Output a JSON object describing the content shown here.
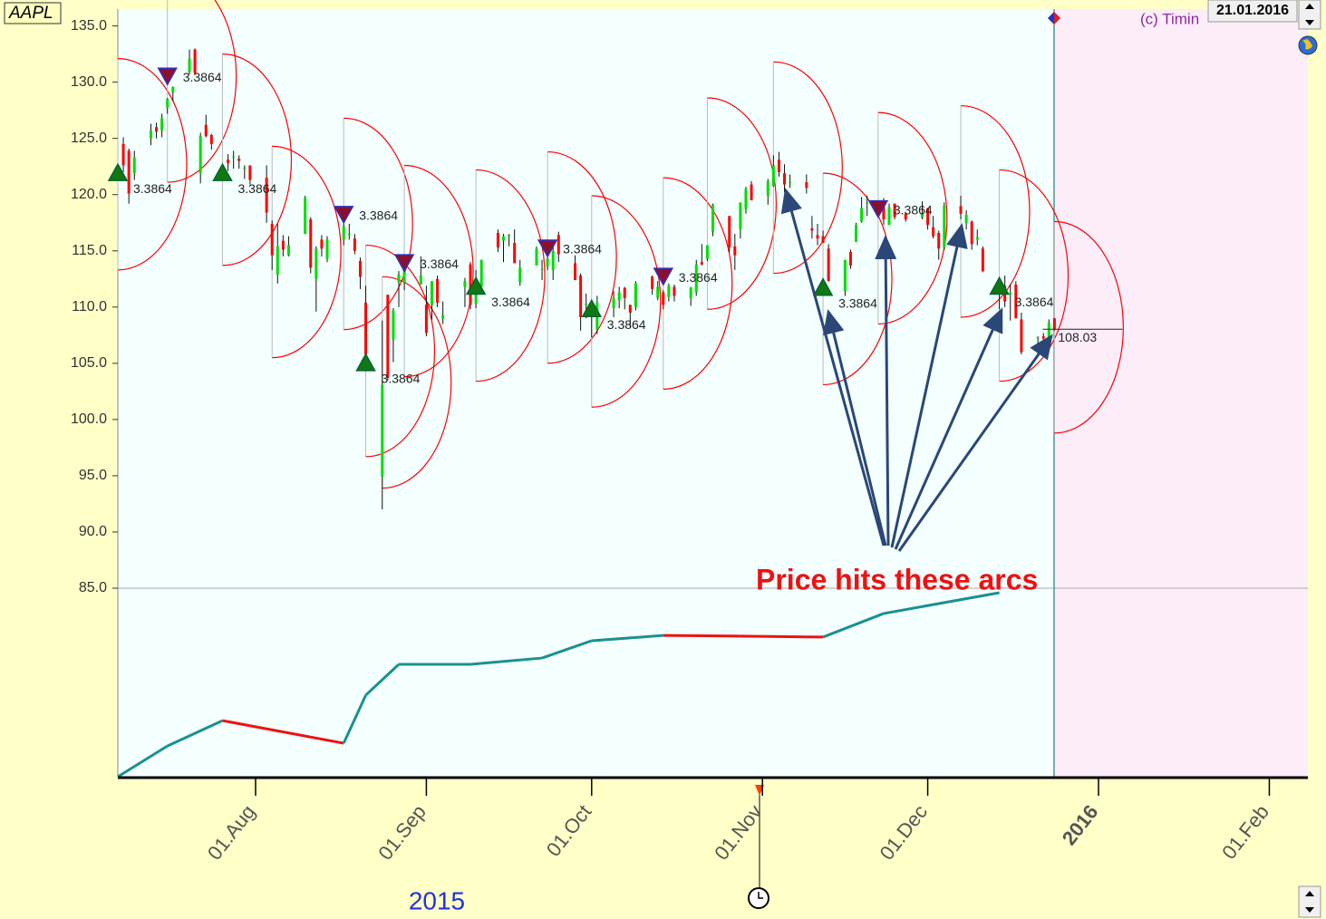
{
  "chart_data": {
    "type": "candlestick",
    "symbol": "AAPL",
    "copyright": "(c) Timin",
    "date_box": "21.01.2016",
    "year_label": "2015",
    "annotation": "Price hits these arcs",
    "xlim": [
      "2015-07-07",
      "2016-02-08"
    ],
    "xticks": [
      {
        "value": "2015-08-01",
        "label": "01.Aug"
      },
      {
        "value": "2015-09-01",
        "label": "01.Sep"
      },
      {
        "value": "2015-10-01",
        "label": "01.Oct"
      },
      {
        "value": "2015-11-01",
        "label": "01.Nov"
      },
      {
        "value": "2015-12-01",
        "label": "01.Dec"
      },
      {
        "value": "2016-01-01",
        "label": "2016"
      },
      {
        "value": "2016-02-01",
        "label": "01.Feb"
      }
    ],
    "ylim": [
      85,
      136.5
    ],
    "yticks": [
      {
        "value": 135,
        "label": "135.0"
      },
      {
        "value": 130,
        "label": "130.0"
      },
      {
        "value": 125,
        "label": "125.0"
      },
      {
        "value": 120,
        "label": "120.0"
      },
      {
        "value": 115,
        "label": "115.0"
      },
      {
        "value": 110,
        "label": "110.0"
      },
      {
        "value": 105,
        "label": "105.0"
      },
      {
        "value": 100,
        "label": "100.0"
      },
      {
        "value": 95,
        "label": "95.0"
      },
      {
        "value": 90,
        "label": "90.0"
      },
      {
        "value": 85,
        "label": "85.0"
      }
    ],
    "candle_colors": {
      "up": "#00dd00",
      "down": "#ff0000"
    },
    "candles": [
      [
        "2015-07-08",
        124.5,
        125.1,
        122.0,
        122.6
      ],
      [
        "2015-07-09",
        123.9,
        124.1,
        119.2,
        120.1
      ],
      [
        "2015-07-10",
        121.9,
        123.9,
        121.3,
        123.3
      ],
      [
        "2015-07-13",
        125.0,
        126.3,
        124.4,
        125.7
      ],
      [
        "2015-07-14",
        126.0,
        126.4,
        125.0,
        125.6
      ],
      [
        "2015-07-15",
        125.7,
        127.2,
        125.1,
        126.8
      ],
      [
        "2015-07-16",
        127.7,
        128.6,
        127.2,
        128.5
      ],
      [
        "2015-07-17",
        129.1,
        129.6,
        128.3,
        129.6
      ],
      [
        "2015-07-20",
        130.9,
        132.9,
        130.7,
        132.1
      ],
      [
        "2015-07-21",
        132.9,
        133.0,
        130.7,
        130.8
      ],
      [
        "2015-07-22",
        121.9,
        125.5,
        121.0,
        125.2
      ],
      [
        "2015-07-23",
        126.2,
        127.1,
        125.1,
        125.2
      ],
      [
        "2015-07-24",
        125.3,
        125.4,
        124.0,
        124.5
      ],
      [
        "2015-07-27",
        123.1,
        123.6,
        122.1,
        122.8
      ],
      [
        "2015-07-28",
        123.4,
        123.9,
        122.3,
        123.4
      ],
      [
        "2015-07-29",
        123.2,
        123.5,
        122.3,
        123.0
      ],
      [
        "2015-07-30",
        122.3,
        122.6,
        121.4,
        122.4
      ],
      [
        "2015-07-31",
        122.6,
        122.6,
        120.9,
        121.3
      ],
      [
        "2015-08-03",
        121.5,
        122.6,
        117.5,
        118.4
      ],
      [
        "2015-08-04",
        117.4,
        117.7,
        113.3,
        114.6
      ],
      [
        "2015-08-05",
        112.9,
        117.4,
        112.1,
        115.4
      ],
      [
        "2015-08-06",
        115.9,
        116.4,
        114.5,
        115.1
      ],
      [
        "2015-08-07",
        114.6,
        116.3,
        114.5,
        115.5
      ],
      [
        "2015-08-10",
        116.5,
        119.9,
        116.5,
        119.7
      ],
      [
        "2015-08-11",
        117.8,
        118.0,
        113.0,
        113.5
      ],
      [
        "2015-08-12",
        112.5,
        115.4,
        109.6,
        115.2
      ],
      [
        "2015-08-13",
        116.0,
        116.4,
        114.5,
        115.2
      ],
      [
        "2015-08-14",
        114.3,
        116.3,
        114.0,
        116.0
      ],
      [
        "2015-08-17",
        116.0,
        117.6,
        115.5,
        117.2
      ],
      [
        "2015-08-18",
        116.4,
        117.4,
        116.0,
        116.5
      ],
      [
        "2015-08-19",
        116.1,
        116.5,
        114.7,
        115.0
      ],
      [
        "2015-08-20",
        114.1,
        114.4,
        111.6,
        112.7
      ],
      [
        "2015-08-21",
        110.4,
        111.9,
        105.6,
        105.8
      ],
      [
        "2015-08-24",
        94.9,
        108.8,
        92.0,
        103.1
      ],
      [
        "2015-08-25",
        111.1,
        111.1,
        103.5,
        103.7
      ],
      [
        "2015-08-26",
        107.1,
        109.9,
        105.1,
        109.7
      ],
      [
        "2015-08-27",
        112.2,
        113.2,
        110.0,
        112.9
      ],
      [
        "2015-08-28",
        112.2,
        113.3,
        111.5,
        113.3
      ],
      [
        "2015-08-31",
        112.0,
        114.5,
        112.0,
        112.8
      ],
      [
        "2015-09-01",
        110.2,
        111.9,
        107.4,
        107.7
      ],
      [
        "2015-09-02",
        110.2,
        112.3,
        108.9,
        112.3
      ],
      [
        "2015-09-03",
        112.5,
        112.8,
        110.0,
        110.4
      ],
      [
        "2015-09-04",
        108.97,
        110.5,
        108.5,
        109.3
      ],
      [
        "2015-09-08",
        111.8,
        112.6,
        110.0,
        112.3
      ],
      [
        "2015-09-09",
        113.8,
        114.0,
        109.8,
        110.2
      ],
      [
        "2015-09-10",
        110.3,
        113.3,
        109.9,
        112.6
      ],
      [
        "2015-09-11",
        111.8,
        114.2,
        111.8,
        114.2
      ],
      [
        "2015-09-14",
        116.6,
        116.9,
        114.9,
        115.3
      ],
      [
        "2015-09-15",
        115.9,
        116.5,
        114.0,
        116.3
      ],
      [
        "2015-09-16",
        116.3,
        116.5,
        115.4,
        116.4
      ],
      [
        "2015-09-17",
        115.7,
        116.9,
        113.9,
        113.9
      ],
      [
        "2015-09-18",
        112.2,
        114.2,
        111.9,
        113.5
      ],
      [
        "2015-09-21",
        113.7,
        115.4,
        113.7,
        115.2
      ],
      [
        "2015-09-22",
        113.4,
        114.2,
        112.4,
        113.4
      ],
      [
        "2015-09-23",
        113.6,
        114.7,
        113.3,
        114.3
      ],
      [
        "2015-09-24",
        113.3,
        115.5,
        112.4,
        115.0
      ],
      [
        "2015-09-25",
        116.4,
        116.7,
        114.0,
        114.7
      ],
      [
        "2015-09-28",
        113.9,
        114.6,
        112.4,
        112.4
      ],
      [
        "2015-09-29",
        112.8,
        113.0,
        107.9,
        109.1
      ],
      [
        "2015-09-30",
        110.2,
        111.2,
        109.0,
        110.3
      ],
      [
        "2015-10-01",
        109.1,
        109.6,
        107.3,
        109.6
      ],
      [
        "2015-10-02",
        108.0,
        111.0,
        107.6,
        110.4
      ],
      [
        "2015-10-05",
        109.9,
        111.4,
        109.1,
        110.8
      ],
      [
        "2015-10-06",
        110.6,
        111.8,
        109.9,
        111.3
      ],
      [
        "2015-10-07",
        111.7,
        111.8,
        109.8,
        110.8
      ],
      [
        "2015-10-08",
        110.2,
        110.2,
        108.2,
        109.5
      ],
      [
        "2015-10-09",
        110.0,
        112.3,
        109.7,
        112.1
      ],
      [
        "2015-10-12",
        112.7,
        112.8,
        111.1,
        111.6
      ],
      [
        "2015-10-13",
        110.8,
        112.3,
        110.6,
        111.8
      ],
      [
        "2015-10-14",
        111.3,
        111.5,
        109.8,
        110.2
      ],
      [
        "2015-10-15",
        110.9,
        112.1,
        110.5,
        111.9
      ],
      [
        "2015-10-16",
        111.8,
        112.0,
        110.5,
        111.0
      ],
      [
        "2015-10-19",
        110.8,
        111.8,
        110.1,
        111.7
      ],
      [
        "2015-10-20",
        111.3,
        114.2,
        111.0,
        113.8
      ],
      [
        "2015-10-21",
        114.0,
        115.6,
        113.7,
        113.8
      ],
      [
        "2015-10-22",
        114.3,
        115.5,
        114.1,
        115.5
      ],
      [
        "2015-10-23",
        116.7,
        119.2,
        116.3,
        119.1
      ],
      [
        "2015-10-26",
        118.1,
        118.1,
        114.9,
        115.3
      ],
      [
        "2015-10-27",
        115.4,
        116.5,
        113.3,
        114.6
      ],
      [
        "2015-10-28",
        116.9,
        119.3,
        116.1,
        119.3
      ],
      [
        "2015-10-29",
        118.7,
        120.7,
        118.3,
        120.5
      ],
      [
        "2015-10-30",
        120.9,
        121.2,
        119.5,
        119.5
      ],
      [
        "2015-11-02",
        119.9,
        121.4,
        119.1,
        121.2
      ],
      [
        "2015-11-03",
        120.8,
        123.5,
        120.7,
        122.6
      ],
      [
        "2015-11-04",
        123.1,
        123.8,
        121.6,
        122.0
      ],
      [
        "2015-11-05",
        121.9,
        122.7,
        120.2,
        120.9
      ],
      [
        "2015-11-06",
        121.1,
        121.8,
        120.6,
        121.1
      ],
      [
        "2015-11-09",
        121.1,
        121.8,
        120.1,
        120.6
      ],
      [
        "2015-11-10",
        117.0,
        118.1,
        116.1,
        116.8
      ],
      [
        "2015-11-11",
        116.4,
        117.4,
        115.5,
        116.1
      ],
      [
        "2015-11-12",
        116.3,
        116.8,
        115.7,
        115.7
      ],
      [
        "2015-11-13",
        115.2,
        115.6,
        112.3,
        112.3
      ],
      [
        "2015-11-16",
        111.4,
        114.2,
        111.0,
        114.2
      ],
      [
        "2015-11-17",
        114.9,
        115.1,
        113.4,
        113.7
      ],
      [
        "2015-11-18",
        115.8,
        117.5,
        115.8,
        117.3
      ],
      [
        "2015-11-19",
        117.6,
        119.8,
        117.5,
        118.8
      ],
      [
        "2015-11-20",
        119.2,
        119.9,
        118.1,
        119.3
      ],
      [
        "2015-11-23",
        119.3,
        119.7,
        117.3,
        117.8
      ],
      [
        "2015-11-24",
        117.3,
        119.2,
        117.3,
        118.9
      ],
      [
        "2015-11-25",
        119.2,
        119.2,
        117.8,
        118.0
      ],
      [
        "2015-11-27",
        118.3,
        118.4,
        117.6,
        117.8
      ],
      [
        "2015-11-30",
        117.99,
        119.4,
        117.8,
        118.3
      ],
      [
        "2015-12-01",
        118.8,
        118.8,
        116.9,
        117.3
      ],
      [
        "2015-12-02",
        117.1,
        118.1,
        116.1,
        116.3
      ],
      [
        "2015-12-03",
        116.6,
        116.8,
        114.2,
        115.2
      ],
      [
        "2015-12-04",
        115.3,
        119.3,
        115.1,
        119.0
      ],
      [
        "2015-12-07",
        118.98,
        119.9,
        117.8,
        118.3
      ],
      [
        "2015-12-08",
        117.5,
        118.6,
        116.9,
        118.2
      ],
      [
        "2015-12-09",
        117.6,
        117.7,
        115.1,
        115.6
      ],
      [
        "2015-12-10",
        116.0,
        116.9,
        115.5,
        116.2
      ],
      [
        "2015-12-11",
        115.2,
        115.4,
        113.1,
        113.2
      ],
      [
        "2015-12-14",
        112.2,
        112.7,
        109.8,
        112.5
      ],
      [
        "2015-12-15",
        111.9,
        112.8,
        110.0,
        110.5
      ],
      [
        "2015-12-16",
        111.1,
        112.0,
        108.8,
        111.3
      ],
      [
        "2015-12-17",
        112.0,
        112.3,
        109.0,
        109.0
      ],
      [
        "2015-12-18",
        108.9,
        109.5,
        105.8,
        106.0
      ],
      [
        "2015-12-21",
        107.3,
        107.4,
        105.6,
        107.3
      ],
      [
        "2015-12-22",
        107.4,
        107.7,
        106.2,
        107.2
      ],
      [
        "2015-12-23",
        107.3,
        108.9,
        107.3,
        108.6
      ],
      [
        "2015-12-24",
        109.0,
        109.0,
        107.9,
        108.0
      ]
    ],
    "arc_color": "#ff0000",
    "arc_radius_price": 9.4,
    "arc_radius_days": 12.5,
    "arcs": [
      {
        "date": "2015-07-07",
        "price": 122.7
      },
      {
        "date": "2015-07-16",
        "price": 130.5
      },
      {
        "date": "2015-07-26",
        "price": 123.1
      },
      {
        "date": "2015-08-04",
        "price": 114.9
      },
      {
        "date": "2015-08-17",
        "price": 117.4
      },
      {
        "date": "2015-08-21",
        "price": 106.1
      },
      {
        "date": "2015-08-24",
        "price": 103.3
      },
      {
        "date": "2015-08-28",
        "price": 113.2
      },
      {
        "date": "2015-09-10",
        "price": 112.8
      },
      {
        "date": "2015-09-23",
        "price": 114.4
      },
      {
        "date": "2015-10-01",
        "price": 110.5
      },
      {
        "date": "2015-10-14",
        "price": 112.1
      },
      {
        "date": "2015-10-22",
        "price": 119.2
      },
      {
        "date": "2015-11-03",
        "price": 122.4
      },
      {
        "date": "2015-11-12",
        "price": 112.5
      },
      {
        "date": "2015-11-22",
        "price": 117.9
      },
      {
        "date": "2015-12-07",
        "price": 118.5
      },
      {
        "date": "2015-12-14",
        "price": 112.8
      },
      {
        "date": "2015-12-24",
        "price": 108.2
      }
    ],
    "markers": [
      {
        "date": "2015-07-07",
        "price": 121.9,
        "dir": "up",
        "label": "3.3864"
      },
      {
        "date": "2015-07-16",
        "price": 130.6,
        "dir": "down",
        "label": "3.3864"
      },
      {
        "date": "2015-07-26",
        "price": 121.9,
        "dir": "up",
        "label": "3.3864"
      },
      {
        "date": "2015-08-17",
        "price": 118.3,
        "dir": "down",
        "label": "3.3864"
      },
      {
        "date": "2015-08-21",
        "price": 105.0,
        "dir": "up",
        "label": "3.3864"
      },
      {
        "date": "2015-08-28",
        "price": 114.0,
        "dir": "down",
        "label": "3.3864"
      },
      {
        "date": "2015-09-10",
        "price": 111.8,
        "dir": "up",
        "label": "3.3864"
      },
      {
        "date": "2015-09-23",
        "price": 115.3,
        "dir": "down",
        "label": "3.3864"
      },
      {
        "date": "2015-10-01",
        "price": 109.8,
        "dir": "up",
        "label": "3.3864"
      },
      {
        "date": "2015-10-14",
        "price": 112.8,
        "dir": "down",
        "label": "3.3864"
      },
      {
        "date": "2015-11-12",
        "price": 111.7,
        "dir": "up",
        "label": "3.3864"
      },
      {
        "date": "2015-11-22",
        "price": 118.8,
        "dir": "down",
        "label": "3.3864"
      },
      {
        "date": "2015-12-14",
        "price": 111.8,
        "dir": "up",
        "label": "3.3864"
      }
    ],
    "last_price": 108.03,
    "indicator": {
      "color": "#1a9090",
      "down_color": "#ee1111",
      "ylim": [
        0,
        100
      ],
      "x": [
        "2015-07-07",
        "2015-07-16",
        "2015-07-26",
        "2015-08-17",
        "2015-08-21",
        "2015-08-27",
        "2015-09-09",
        "2015-09-22",
        "2015-10-01",
        "2015-10-14",
        "2015-10-28",
        "2015-11-12",
        "2015-11-23",
        "2015-12-14"
      ],
      "values": [
        0,
        16.7,
        30.5,
        18.2,
        44.3,
        61.1,
        61.1,
        64.5,
        73.9,
        76.8,
        76.4,
        75.9,
        88.7,
        100
      ]
    }
  }
}
